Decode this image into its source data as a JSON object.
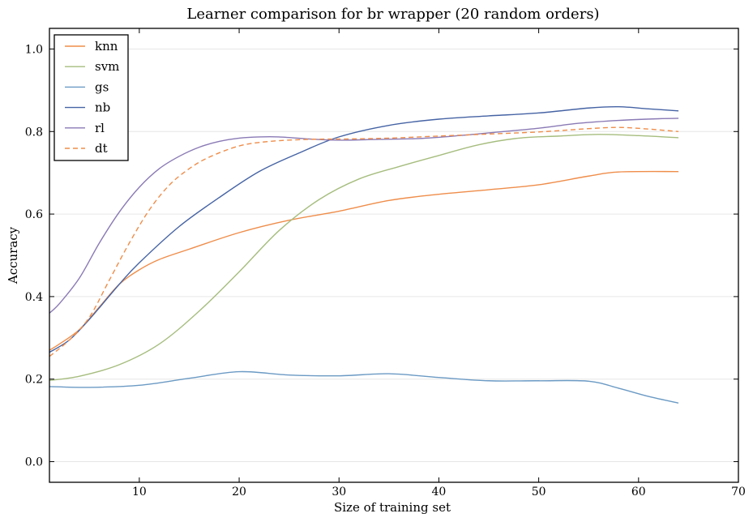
{
  "chart_data": {
    "type": "line",
    "title": "Learner comparison for br wrapper (20 random orders)",
    "xlabel": "Size of training set",
    "ylabel": "Accuracy",
    "xlim": [
      1,
      70
    ],
    "ylim": [
      -0.05,
      1.05
    ],
    "xticks": [
      10,
      20,
      30,
      40,
      50,
      60,
      70
    ],
    "yticks": [
      0.0,
      0.2,
      0.4,
      0.6,
      0.8,
      1.0
    ],
    "xtick_labels": [
      "10",
      "20",
      "30",
      "40",
      "50",
      "60",
      "70"
    ],
    "ytick_labels": [
      "0.0",
      "0.2",
      "0.4",
      "0.6",
      "0.8",
      "1.0"
    ],
    "grid": "horizontal",
    "legend_position": "top-left",
    "series": [
      {
        "name": "knn",
        "color": "#ef8d4a",
        "dash": "solid",
        "x": [
          1,
          2,
          4,
          6,
          8,
          10,
          12,
          15,
          20,
          25,
          30,
          35,
          40,
          45,
          50,
          55,
          58,
          64
        ],
        "y": [
          0.27,
          0.285,
          0.32,
          0.375,
          0.43,
          0.465,
          0.49,
          0.515,
          0.555,
          0.585,
          0.607,
          0.633,
          0.648,
          0.659,
          0.671,
          0.692,
          0.702,
          0.703
        ]
      },
      {
        "name": "svm",
        "color": "#a6bd7e",
        "dash": "solid",
        "x": [
          1,
          4,
          8,
          12,
          16,
          20,
          24,
          28,
          32,
          36,
          40,
          44,
          48,
          52,
          56,
          60,
          64
        ],
        "y": [
          0.197,
          0.207,
          0.235,
          0.285,
          0.365,
          0.46,
          0.56,
          0.635,
          0.685,
          0.715,
          0.742,
          0.768,
          0.784,
          0.789,
          0.793,
          0.79,
          0.785
        ]
      },
      {
        "name": "gs",
        "color": "#6b9ac4",
        "dash": "solid",
        "x": [
          1,
          5,
          10,
          15,
          20,
          25,
          30,
          35,
          40,
          45,
          50,
          55,
          58,
          61,
          64
        ],
        "y": [
          0.182,
          0.18,
          0.185,
          0.202,
          0.218,
          0.21,
          0.208,
          0.213,
          0.204,
          0.196,
          0.196,
          0.195,
          0.178,
          0.158,
          0.142
        ]
      },
      {
        "name": "nb",
        "color": "#4563a4",
        "dash": "solid",
        "x": [
          1,
          3,
          5,
          8,
          10,
          14,
          18,
          22,
          26,
          30,
          35,
          40,
          45,
          50,
          55,
          58,
          61,
          64
        ],
        "y": [
          0.265,
          0.295,
          0.345,
          0.43,
          0.482,
          0.57,
          0.64,
          0.703,
          0.748,
          0.787,
          0.815,
          0.83,
          0.838,
          0.845,
          0.857,
          0.86,
          0.855,
          0.85
        ]
      },
      {
        "name": "rl",
        "color": "#8a7ab5",
        "dash": "solid",
        "x": [
          1,
          2,
          4,
          6,
          8,
          10,
          12,
          14,
          16,
          18,
          20,
          22,
          24,
          27,
          30,
          34,
          38,
          42,
          46,
          50,
          54,
          58,
          62,
          64
        ],
        "y": [
          0.36,
          0.383,
          0.445,
          0.53,
          0.605,
          0.665,
          0.71,
          0.74,
          0.762,
          0.776,
          0.784,
          0.787,
          0.787,
          0.782,
          0.779,
          0.781,
          0.783,
          0.79,
          0.799,
          0.808,
          0.82,
          0.827,
          0.831,
          0.832
        ]
      },
      {
        "name": "dt",
        "color": "#ef8d4a",
        "dash": "dashed",
        "x": [
          1,
          3,
          5,
          7,
          9,
          11,
          13,
          15,
          17,
          20,
          23,
          27,
          31,
          35,
          40,
          45,
          50,
          55,
          58,
          61,
          64
        ],
        "y": [
          0.255,
          0.295,
          0.35,
          0.44,
          0.53,
          0.61,
          0.67,
          0.71,
          0.738,
          0.765,
          0.776,
          0.781,
          0.782,
          0.784,
          0.789,
          0.794,
          0.799,
          0.807,
          0.81,
          0.806,
          0.8
        ]
      }
    ]
  }
}
